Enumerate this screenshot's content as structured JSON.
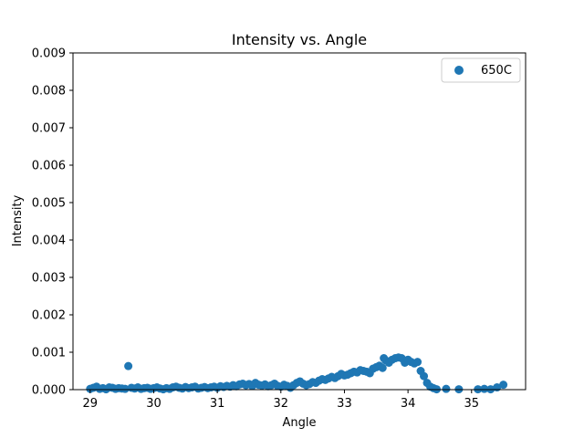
{
  "chart_data": {
    "type": "scatter",
    "title": "Intensity vs. Angle",
    "xlabel": "Angle",
    "ylabel": "Intensity",
    "xlim": [
      28.73,
      35.85
    ],
    "ylim": [
      0,
      0.009
    ],
    "x_ticks": [
      "29",
      "30",
      "31",
      "32",
      "33",
      "34",
      "35"
    ],
    "y_ticks": [
      "0.000",
      "0.001",
      "0.002",
      "0.003",
      "0.004",
      "0.005",
      "0.006",
      "0.007",
      "0.008",
      "0.009"
    ],
    "grid": false,
    "legend_position": "top-right",
    "series": [
      {
        "name": "650C",
        "color": "#1f77b4",
        "points": [
          [
            29.0,
            2e-05
          ],
          [
            29.05,
            5e-05
          ],
          [
            29.1,
            8e-05
          ],
          [
            29.15,
            2e-05
          ],
          [
            29.2,
            4e-05
          ],
          [
            29.25,
            1e-05
          ],
          [
            29.3,
            6e-05
          ],
          [
            29.35,
            5e-05
          ],
          [
            29.4,
            2e-05
          ],
          [
            29.45,
            4e-05
          ],
          [
            29.5,
            3e-05
          ],
          [
            29.55,
            2e-05
          ],
          [
            29.6,
            0.00063
          ],
          [
            29.65,
            5e-05
          ],
          [
            29.7,
            3e-05
          ],
          [
            29.75,
            6e-05
          ],
          [
            29.8,
            2e-05
          ],
          [
            29.85,
            4e-05
          ],
          [
            29.9,
            5e-05
          ],
          [
            29.95,
            2e-05
          ],
          [
            30.0,
            4e-05
          ],
          [
            30.05,
            6e-05
          ],
          [
            30.1,
            3e-05
          ],
          [
            30.15,
            1e-05
          ],
          [
            30.2,
            4e-05
          ],
          [
            30.25,
            2e-05
          ],
          [
            30.3,
            6e-05
          ],
          [
            30.35,
            8e-05
          ],
          [
            30.4,
            5e-05
          ],
          [
            30.45,
            3e-05
          ],
          [
            30.5,
            7e-05
          ],
          [
            30.55,
            4e-05
          ],
          [
            30.6,
            6e-05
          ],
          [
            30.65,
            8e-05
          ],
          [
            30.7,
            3e-05
          ],
          [
            30.75,
            5e-05
          ],
          [
            30.8,
            7e-05
          ],
          [
            30.85,
            4e-05
          ],
          [
            30.9,
            6e-05
          ],
          [
            30.95,
            8e-05
          ],
          [
            31.0,
            5e-05
          ],
          [
            31.05,
            9e-05
          ],
          [
            31.1,
            7e-05
          ],
          [
            31.15,
            0.0001
          ],
          [
            31.2,
            8e-05
          ],
          [
            31.25,
            0.00012
          ],
          [
            31.3,
            9e-05
          ],
          [
            31.35,
            0.00014
          ],
          [
            31.4,
            0.00016
          ],
          [
            31.45,
            0.00012
          ],
          [
            31.5,
            0.00015
          ],
          [
            31.55,
            0.0001
          ],
          [
            31.6,
            0.00018
          ],
          [
            31.65,
            0.00013
          ],
          [
            31.7,
            0.00011
          ],
          [
            31.75,
            0.00014
          ],
          [
            31.8,
            9e-05
          ],
          [
            31.85,
            0.00012
          ],
          [
            31.9,
            0.00016
          ],
          [
            31.95,
            0.0001
          ],
          [
            32.0,
            8e-05
          ],
          [
            32.05,
            0.00013
          ],
          [
            32.1,
            0.0001
          ],
          [
            32.15,
            5e-05
          ],
          [
            32.2,
            0.00012
          ],
          [
            32.25,
            0.00018
          ],
          [
            32.3,
            0.00022
          ],
          [
            32.35,
            0.00016
          ],
          [
            32.4,
            0.00012
          ],
          [
            32.45,
            0.00015
          ],
          [
            32.5,
            0.0002
          ],
          [
            32.55,
            0.00018
          ],
          [
            32.6,
            0.00024
          ],
          [
            32.65,
            0.00028
          ],
          [
            32.7,
            0.00026
          ],
          [
            32.75,
            0.0003
          ],
          [
            32.8,
            0.00034
          ],
          [
            32.85,
            0.00031
          ],
          [
            32.9,
            0.00036
          ],
          [
            32.95,
            0.00042
          ],
          [
            33.0,
            0.00038
          ],
          [
            33.05,
            0.0004
          ],
          [
            33.1,
            0.00044
          ],
          [
            33.15,
            0.00048
          ],
          [
            33.2,
            0.00046
          ],
          [
            33.25,
            0.00052
          ],
          [
            33.3,
            0.0005
          ],
          [
            33.35,
            0.00048
          ],
          [
            33.4,
            0.00044
          ],
          [
            33.45,
            0.00056
          ],
          [
            33.5,
            0.0006
          ],
          [
            33.55,
            0.00064
          ],
          [
            33.6,
            0.00058
          ],
          [
            33.62,
            0.00084
          ],
          [
            33.65,
            0.00078
          ],
          [
            33.7,
            0.00072
          ],
          [
            33.75,
            0.0008
          ],
          [
            33.8,
            0.00084
          ],
          [
            33.85,
            0.00086
          ],
          [
            33.9,
            0.00084
          ],
          [
            33.95,
            0.00072
          ],
          [
            34.0,
            0.0008
          ],
          [
            34.05,
            0.00074
          ],
          [
            34.1,
            0.0007
          ],
          [
            34.15,
            0.00074
          ],
          [
            34.2,
            0.0005
          ],
          [
            34.25,
            0.00036
          ],
          [
            34.3,
            0.00018
          ],
          [
            34.35,
            8e-05
          ],
          [
            34.4,
            4e-05
          ],
          [
            34.45,
            1e-05
          ],
          [
            34.6,
            2e-05
          ],
          [
            34.8,
            1e-05
          ],
          [
            35.1,
            1e-05
          ],
          [
            35.2,
            2e-05
          ],
          [
            35.3,
            1e-05
          ],
          [
            35.4,
            6e-05
          ],
          [
            35.5,
            0.00013
          ]
        ]
      }
    ]
  }
}
